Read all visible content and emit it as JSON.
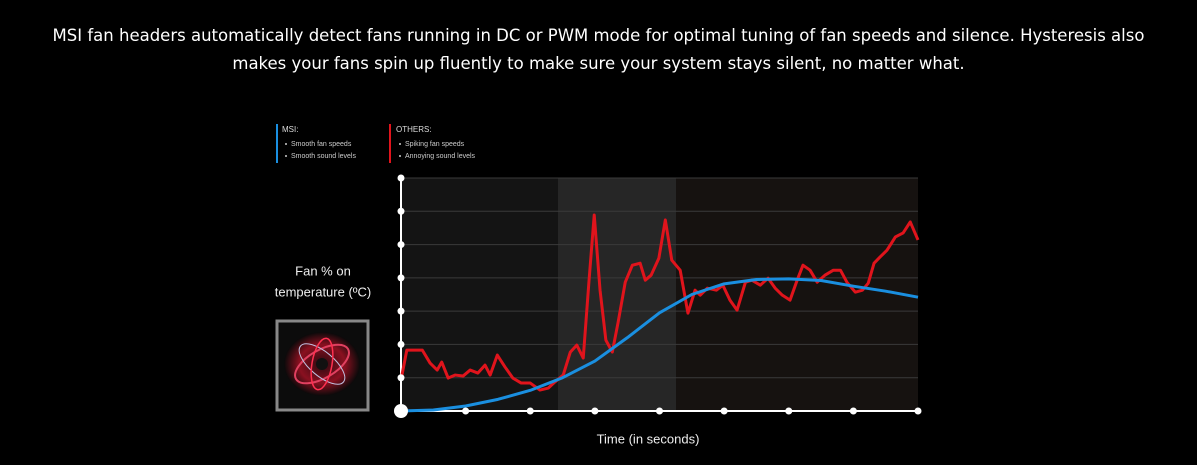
{
  "intro": "MSI fan headers automatically detect fans running in DC or PWM mode for optimal tuning of fan speeds and silence. Hysteresis also makes your fans spin up fluently to make sure your system stays silent, no matter what.",
  "chart_data": {
    "type": "line",
    "y_label": [
      "Fan % on",
      "temperature (ºC)"
    ],
    "x_label": "Time (in seconds)",
    "xlim": [
      0,
      8
    ],
    "xticks": [
      0,
      1,
      2,
      3,
      4,
      5,
      6,
      7,
      8
    ],
    "ylim": [
      0,
      7
    ],
    "yticks": [
      0,
      1,
      2,
      3,
      4,
      5,
      6,
      7
    ],
    "grid": true,
    "series": [
      {
        "name": "MSI:",
        "notes": [
          "Smooth fan speeds",
          "Smooth sound levels"
        ],
        "color": "#1a8fe0",
        "x": [
          0,
          0.5,
          1,
          1.5,
          2,
          2.5,
          3,
          3.5,
          4,
          4.5,
          5,
          5.5,
          6,
          6.5,
          7,
          7.5,
          8
        ],
        "values": [
          0,
          0.03,
          0.15,
          0.35,
          0.62,
          1.0,
          1.5,
          2.2,
          2.95,
          3.5,
          3.82,
          3.95,
          3.97,
          3.92,
          3.75,
          3.6,
          3.42
        ]
      },
      {
        "name": "OTHERS:",
        "notes": [
          "Spiking fan speeds",
          "Annoying sound levels"
        ],
        "color": "#e0141c",
        "x": [
          0,
          0.09,
          0.33,
          0.45,
          0.56,
          0.63,
          0.73,
          0.84,
          0.96,
          1.07,
          1.19,
          1.3,
          1.38,
          1.49,
          1.61,
          1.73,
          1.86,
          2.0,
          2.15,
          2.28,
          2.38,
          2.51,
          2.62,
          2.72,
          2.82,
          2.91,
          2.99,
          3.08,
          3.17,
          3.27,
          3.36,
          3.47,
          3.58,
          3.7,
          3.78,
          3.87,
          3.99,
          4.09,
          4.19,
          4.32,
          4.44,
          4.55,
          4.63,
          4.74,
          4.88,
          4.98,
          5.09,
          5.2,
          5.33,
          5.43,
          5.56,
          5.68,
          5.79,
          5.9,
          6.02,
          6.13,
          6.22,
          6.33,
          6.44,
          6.56,
          6.69,
          6.8,
          6.9,
          7.03,
          7.14,
          7.23,
          7.32,
          7.41,
          7.52,
          7.65,
          7.77,
          7.88,
          8.0
        ],
        "values": [
          0.93,
          1.83,
          1.83,
          1.44,
          1.23,
          1.47,
          0.99,
          1.08,
          1.05,
          1.23,
          1.14,
          1.38,
          1.08,
          1.68,
          1.32,
          0.99,
          0.84,
          0.84,
          0.63,
          0.69,
          0.87,
          1.08,
          1.77,
          1.98,
          1.59,
          3.93,
          5.89,
          3.63,
          2.13,
          1.77,
          2.67,
          3.87,
          4.38,
          4.44,
          3.93,
          4.08,
          4.59,
          5.74,
          4.53,
          4.23,
          2.94,
          3.63,
          3.48,
          3.69,
          3.63,
          3.78,
          3.33,
          3.03,
          3.87,
          3.93,
          3.78,
          3.99,
          3.69,
          3.48,
          3.33,
          3.93,
          4.38,
          4.23,
          3.87,
          4.08,
          4.23,
          4.23,
          3.87,
          3.57,
          3.63,
          3.84,
          4.44,
          4.62,
          4.83,
          5.23,
          5.35,
          5.68,
          5.14
        ]
      }
    ]
  }
}
